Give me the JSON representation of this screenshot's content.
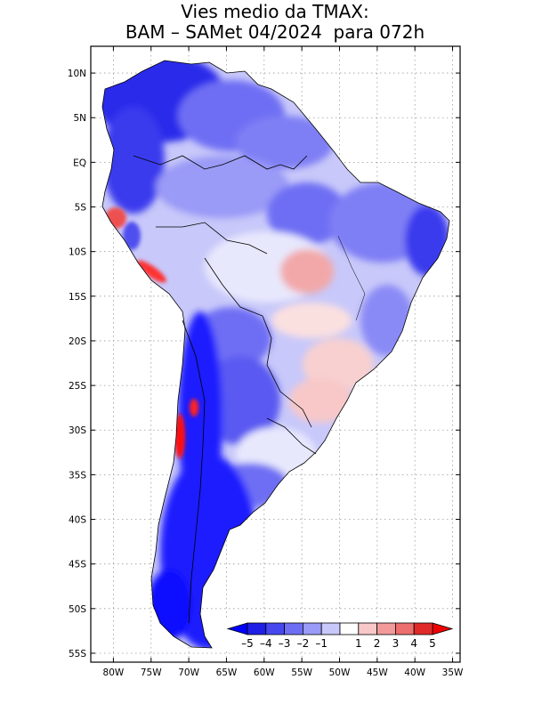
{
  "title": {
    "line1": "Vies medio da TMAX:",
    "line2": "BAM – SAMet 04/2024  para 072h"
  },
  "map": {
    "region": "South America",
    "lon_range": [
      -83,
      -34
    ],
    "lat_range": [
      -56,
      13
    ],
    "x_ticks": [
      {
        "lon": -80,
        "label": "80W"
      },
      {
        "lon": -75,
        "label": "75W"
      },
      {
        "lon": -70,
        "label": "70W"
      },
      {
        "lon": -65,
        "label": "65W"
      },
      {
        "lon": -60,
        "label": "60W"
      },
      {
        "lon": -55,
        "label": "55W"
      },
      {
        "lon": -50,
        "label": "50W"
      },
      {
        "lon": -45,
        "label": "45W"
      },
      {
        "lon": -40,
        "label": "40W"
      },
      {
        "lon": -35,
        "label": "35W"
      }
    ],
    "y_ticks": [
      {
        "lat": 10,
        "label": "10N"
      },
      {
        "lat": 5,
        "label": "5N"
      },
      {
        "lat": 0,
        "label": "EQ"
      },
      {
        "lat": -5,
        "label": "5S"
      },
      {
        "lat": -10,
        "label": "10S"
      },
      {
        "lat": -15,
        "label": "15S"
      },
      {
        "lat": -20,
        "label": "20S"
      },
      {
        "lat": -25,
        "label": "25S"
      },
      {
        "lat": -30,
        "label": "30S"
      },
      {
        "lat": -35,
        "label": "35S"
      },
      {
        "lat": -40,
        "label": "40S"
      },
      {
        "lat": -45,
        "label": "45S"
      },
      {
        "lat": -50,
        "label": "50S"
      },
      {
        "lat": -55,
        "label": "55S"
      }
    ],
    "bias_regions": [
      {
        "name": "northern-south-america",
        "level": -4
      },
      {
        "name": "amazon-basin",
        "level": -2
      },
      {
        "name": "central-brazil",
        "level": -1
      },
      {
        "name": "mato-grosso-positive",
        "level": 2
      },
      {
        "name": "southeast-brazil-positive",
        "level": 1
      },
      {
        "name": "ecuador-peru-coast",
        "level": 4
      },
      {
        "name": "chile-andes",
        "level": 5
      },
      {
        "name": "southern-andes-patagonia",
        "level": -5
      },
      {
        "name": "pampas",
        "level": -3
      },
      {
        "name": "northeast-brazil",
        "level": -3
      }
    ]
  },
  "colorbar": {
    "labels": [
      "–5",
      "–4",
      "–3",
      "–2",
      "–1",
      "1",
      "2",
      "3",
      "4",
      "5"
    ],
    "colors": [
      "#1f1fe6",
      "#4747f0",
      "#6e6ef4",
      "#9a9af7",
      "#c8c8fa",
      "#ffffff",
      "#f8c8c8",
      "#f29a9a",
      "#ec6e6e",
      "#e02a2a"
    ],
    "under_color": "#0000ff",
    "over_color": "#ee0000"
  }
}
